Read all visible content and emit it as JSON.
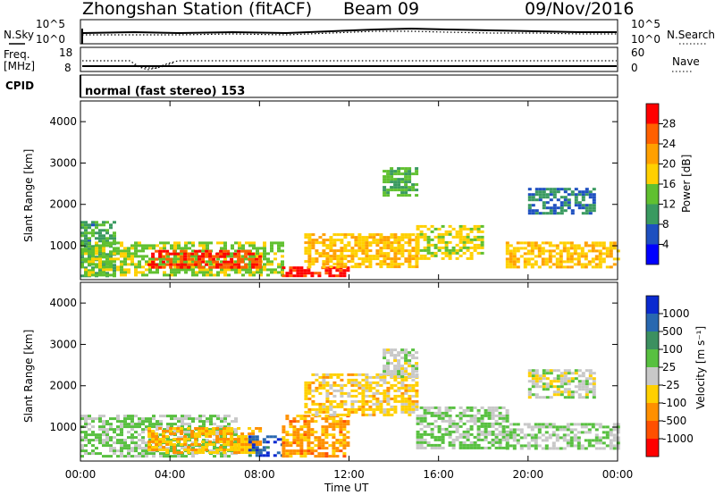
{
  "header": {
    "station": "Zhongshan Station (fitACF)",
    "beam": "Beam 09",
    "date": "09/Nov/2016"
  },
  "nsky_panel": {
    "left_label": "N.Sky",
    "right_label": "N.Search",
    "left_ticks": [
      "10^5",
      "10^0"
    ],
    "right_ticks": [
      "10^5",
      "10^0"
    ]
  },
  "freq_panel": {
    "left_label_1": "Freq.",
    "left_label_2": "[MHz]",
    "left_ticks": [
      "18",
      "8"
    ],
    "right_ticks": [
      "60",
      "0"
    ],
    "right_label": "Nave"
  },
  "cpid_panel": {
    "label": "CPID",
    "mode_text": "normal (fast stereo) 153"
  },
  "range_axis": {
    "label": "Slant Range [km]",
    "ticks": [
      "1000",
      "2000",
      "3000",
      "4000"
    ]
  },
  "time_axis": {
    "label": "Time UT",
    "ticks": [
      "00:00",
      "04:00",
      "08:00",
      "12:00",
      "16:00",
      "20:00",
      "00:00"
    ]
  },
  "power_bar": {
    "label": "Power [dB]",
    "ticks": [
      "4",
      "8",
      "12",
      "16",
      "20",
      "24",
      "28"
    ],
    "colors": [
      "#0000ff",
      "#1e50c0",
      "#3a9a60",
      "#60c030",
      "#ffd000",
      "#ffa000",
      "#ff6000",
      "#ff0000"
    ]
  },
  "velocity_bar": {
    "label": "Velocity [m s⁻¹]",
    "ticks": [
      "1000",
      "500",
      "100",
      "25",
      "-25",
      "-100",
      "-500",
      "-1000"
    ],
    "colors": [
      "#0a2ad0",
      "#2868b0",
      "#3c9060",
      "#58c040",
      "#c8c8c8",
      "#ffd000",
      "#ff9000",
      "#ff5000",
      "#ff0000"
    ]
  },
  "chart_data": {
    "type": "heatmap",
    "x_range_hours": [
      0,
      24
    ],
    "y_range_km": [
      180,
      4500
    ],
    "panels": [
      {
        "name": "Power",
        "units": "dB",
        "scale": [
          0,
          30
        ],
        "regions": [
          {
            "t": [
              0,
              1.5
            ],
            "r": [
              300,
              1600
            ],
            "v": 10
          },
          {
            "t": [
              0,
              9
            ],
            "r": [
              300,
              1100
            ],
            "v": 14
          },
          {
            "t": [
              3,
              8
            ],
            "r": [
              500,
              900
            ],
            "v": 26
          },
          {
            "t": [
              9,
              12
            ],
            "r": [
              250,
              500
            ],
            "v": 28
          },
          {
            "t": [
              10,
              15
            ],
            "r": [
              500,
              1300
            ],
            "v": 18
          },
          {
            "t": [
              13.5,
              15
            ],
            "r": [
              2200,
              2900
            ],
            "v": 12
          },
          {
            "t": [
              15,
              18
            ],
            "r": [
              700,
              1500
            ],
            "v": 16
          },
          {
            "t": [
              19,
              24
            ],
            "r": [
              500,
              1100
            ],
            "v": 18
          },
          {
            "t": [
              20,
              23
            ],
            "r": [
              1800,
              2400
            ],
            "v": 8
          }
        ]
      },
      {
        "name": "Velocity",
        "units": "m/s",
        "scale": [
          -1000,
          1000
        ],
        "regions": [
          {
            "t": [
              0,
              7
            ],
            "r": [
              300,
              1300
            ],
            "v": 150
          },
          {
            "t": [
              3,
              8
            ],
            "r": [
              400,
              1000
            ],
            "v": -300
          },
          {
            "t": [
              7.5,
              9
            ],
            "r": [
              300,
              800
            ],
            "v": 700
          },
          {
            "t": [
              9,
              12
            ],
            "r": [
              300,
              1300
            ],
            "v": -400
          },
          {
            "t": [
              10,
              15
            ],
            "r": [
              1300,
              2300
            ],
            "v": -200
          },
          {
            "t": [
              13.5,
              15
            ],
            "r": [
              2200,
              2900
            ],
            "v": 10
          },
          {
            "t": [
              15,
              19
            ],
            "r": [
              500,
              1500
            ],
            "v": 120
          },
          {
            "t": [
              19,
              24
            ],
            "r": [
              500,
              1100
            ],
            "v": 80
          },
          {
            "t": [
              20,
              23
            ],
            "r": [
              1700,
              2400
            ],
            "v": 0
          }
        ]
      }
    ]
  }
}
